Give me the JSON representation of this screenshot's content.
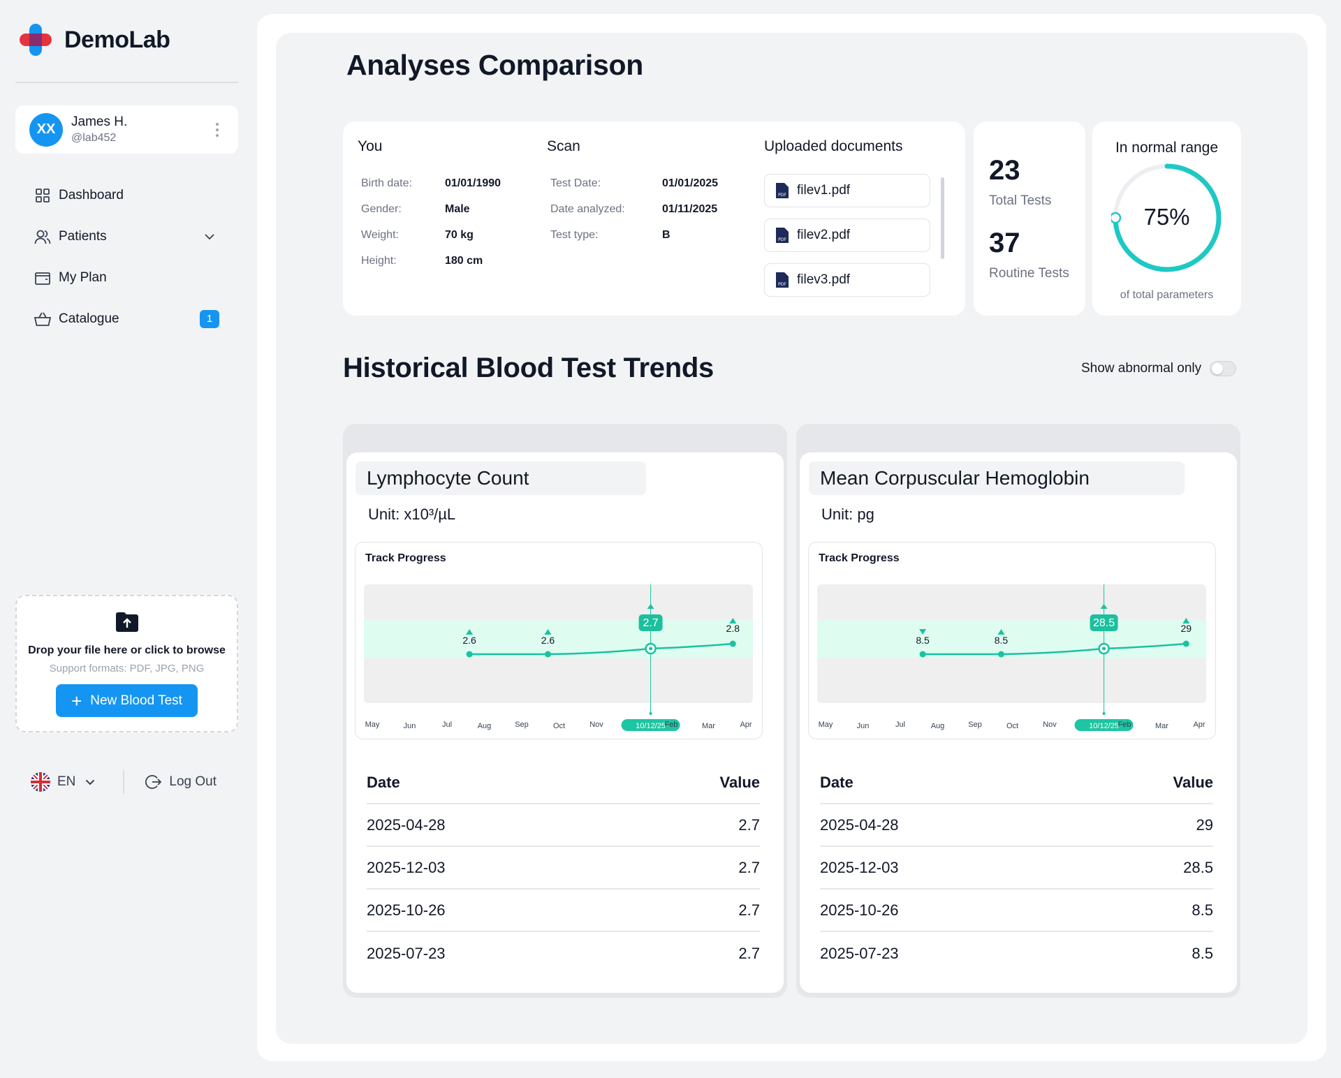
{
  "app": {
    "name": "DemoLab"
  },
  "user": {
    "initials": "XX",
    "name": "James H.",
    "handle": "@lab452"
  },
  "nav": [
    {
      "label": "Dashboard",
      "icon": "grid-icon"
    },
    {
      "label": "Patients",
      "icon": "users-icon"
    },
    {
      "label": "My Plan",
      "icon": "wallet-icon"
    },
    {
      "label": "Catalogue",
      "icon": "basket-icon",
      "badge": "1"
    }
  ],
  "upload": {
    "title": "Drop your file here or click to browse",
    "formats": "Support formats: PDF, JPG, PNG",
    "button": "New Blood Test"
  },
  "footer": {
    "language": "EN",
    "logout": "Log Out"
  },
  "page": {
    "title": "Analyses Comparison"
  },
  "you": {
    "title": "You",
    "fields": [
      {
        "label": "Birth date:",
        "value": "01/01/1990"
      },
      {
        "label": "Gender:",
        "value": "Male"
      },
      {
        "label": "Weight:",
        "value": "70 kg"
      },
      {
        "label": "Height:",
        "value": "180 cm"
      }
    ]
  },
  "scan": {
    "title": "Scan",
    "fields": [
      {
        "label": "Test Date:",
        "value": "01/01/2025"
      },
      {
        "label": "Date analyzed:",
        "value": "01/11/2025"
      },
      {
        "label": "Test type:",
        "value": "B"
      }
    ]
  },
  "documents": {
    "title": "Uploaded documents",
    "files": [
      "filev1.pdf",
      "filev2.pdf",
      "filev3.pdf"
    ]
  },
  "stats": {
    "total_tests": "23",
    "total_label": "Total Tests",
    "routine_tests": "37",
    "routine_label": "Routine Tests"
  },
  "normal_range": {
    "title": "In normal range",
    "percent_label": "75%",
    "percent_value": 75,
    "subtitle": "of total parameters",
    "accent": "#1ec8c4"
  },
  "trends": {
    "title": "Historical Blood Test Trends",
    "toggle_label": "Show abnormal only",
    "toggle_on": false,
    "cards": [
      {
        "title": "Lymphocyte Count",
        "unit": "Unit: x10³/µL",
        "chart_label": "Track Progress",
        "chart_data": {
          "type": "line",
          "x": [
            "Jul",
            "Sep",
            "Dec",
            "Mar"
          ],
          "y": [
            2.6,
            2.6,
            2.7,
            2.8
          ],
          "labels": [
            "2.6",
            "2.6",
            "2.7",
            "2.8"
          ],
          "markers": [
            "up",
            "up",
            "up",
            "up"
          ],
          "highlight_index": 2,
          "months": [
            "May",
            "Jun",
            "Jul",
            "Aug",
            "Sep",
            "Oct",
            "Nov",
            "10/12/25",
            "Feb",
            "Mar",
            "Apr"
          ],
          "selected_month_index": 7
        },
        "table": {
          "headers": [
            "Date",
            "Value"
          ],
          "rows": [
            [
              "2025-04-28",
              "2.7"
            ],
            [
              "2025-12-03",
              "2.7"
            ],
            [
              "2025-10-26",
              "2.7"
            ],
            [
              "2025-07-23",
              "2.7"
            ]
          ]
        }
      },
      {
        "title": "Mean Corpuscular Hemoglobin",
        "unit": "Unit: pg",
        "chart_label": "Track Progress",
        "chart_data": {
          "type": "line",
          "x": [
            "Jul",
            "Sep",
            "Dec",
            "Mar"
          ],
          "y": [
            8.5,
            8.5,
            28.5,
            29
          ],
          "labels": [
            "8.5",
            "8.5",
            "28.5",
            "29"
          ],
          "markers": [
            "down",
            "up",
            "up",
            "up"
          ],
          "highlight_index": 2,
          "months": [
            "May",
            "Jun",
            "Jul",
            "Aug",
            "Sep",
            "Oct",
            "Nov",
            "10/12/25",
            "Feb",
            "Mar",
            "Apr"
          ],
          "selected_month_index": 7
        },
        "table": {
          "headers": [
            "Date",
            "Value"
          ],
          "rows": [
            [
              "2025-04-28",
              "29"
            ],
            [
              "2025-12-03",
              "28.5"
            ],
            [
              "2025-10-26",
              "8.5"
            ],
            [
              "2025-07-23",
              "8.5"
            ]
          ]
        }
      }
    ]
  },
  "colors": {
    "primary": "#1595f2",
    "accent": "#19c2a0",
    "band": "#dffcf1"
  }
}
